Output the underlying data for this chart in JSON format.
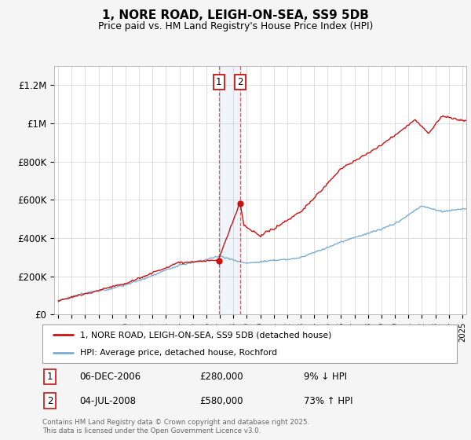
{
  "title": "1, NORE ROAD, LEIGH-ON-SEA, SS9 5DB",
  "subtitle": "Price paid vs. HM Land Registry's House Price Index (HPI)",
  "ylim": [
    0,
    1300000
  ],
  "xlim_start": 1994.7,
  "xlim_end": 2025.3,
  "hpi_color": "#7aadd4",
  "price_color": "#cc1111",
  "transaction1_date": 2006.92,
  "transaction1_price": 280000,
  "transaction2_date": 2008.5,
  "transaction2_price": 580000,
  "legend_line1": "1, NORE ROAD, LEIGH-ON-SEA, SS9 5DB (detached house)",
  "legend_line2": "HPI: Average price, detached house, Rochford",
  "annotation1_text": "06-DEC-2006",
  "annotation1_price": "£280,000",
  "annotation1_hpi": "9% ↓ HPI",
  "annotation2_text": "04-JUL-2008",
  "annotation2_price": "£580,000",
  "annotation2_hpi": "73% ↑ HPI",
  "footer": "Contains HM Land Registry data © Crown copyright and database right 2025.\nThis data is licensed under the Open Government Licence v3.0.",
  "background_color": "#f5f5f5",
  "plot_bg_color": "#ffffff"
}
